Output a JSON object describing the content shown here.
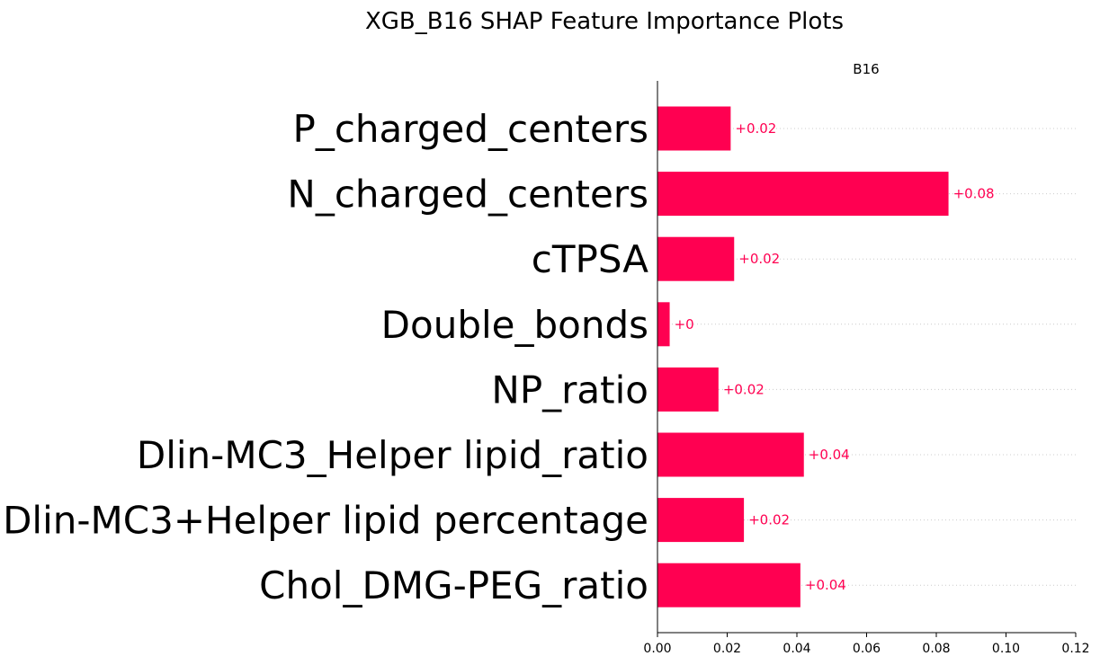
{
  "chart_data": {
    "type": "bar",
    "orientation": "horizontal",
    "title": "XGB_B16 SHAP Feature Importance Plots",
    "subtitle": "B16",
    "categories": [
      "P_charged_centers",
      "N_charged_centers",
      "cTPSA",
      "Double_bonds",
      "NP_ratio",
      "Dlin-MC3_Helper lipid_ratio",
      "Dlin-MC3+Helper lipid percentage",
      "Chol_DMG-PEG_ratio"
    ],
    "values": [
      0.021,
      0.0835,
      0.022,
      0.0035,
      0.0175,
      0.042,
      0.0248,
      0.041
    ],
    "value_labels": [
      "+0.02",
      "+0.08",
      "+0.02",
      "+0",
      "+0.02",
      "+0.04",
      "+0.02",
      "+0.04"
    ],
    "xlim": [
      0,
      0.12
    ],
    "xticks": [
      "0.00",
      "0.02",
      "0.04",
      "0.06",
      "0.08",
      "0.10",
      "0.12"
    ],
    "bar_color": "#ff0051",
    "label_color": "#ff0051",
    "grid": "dotted horizontal guide lines per bar",
    "legend": "none"
  }
}
